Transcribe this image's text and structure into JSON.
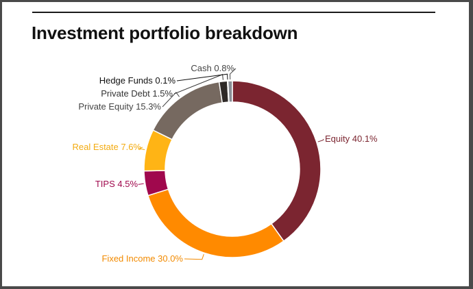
{
  "chart_data": {
    "type": "pie",
    "title": "Investment portfolio breakdown",
    "donut": true,
    "slices": [
      {
        "name": "Equity",
        "value": 40.1,
        "label": "Equity 40.1%",
        "color": "#7b2530",
        "label_color": "#7b2530"
      },
      {
        "name": "Fixed Income",
        "value": 30.0,
        "label": "Fixed Income 30.0%",
        "color": "#ff8a00",
        "label_color": "#f28a00"
      },
      {
        "name": "TIPS",
        "value": 4.5,
        "label": "TIPS 4.5%",
        "color": "#a0084d",
        "label_color": "#a0084d"
      },
      {
        "name": "Real Estate",
        "value": 7.6,
        "label": "Real Estate 7.6%",
        "color": "#ffb415",
        "label_color": "#f3ab10"
      },
      {
        "name": "Private Equity",
        "value": 15.3,
        "label": "Private Equity 15.3%",
        "color": "#766960",
        "label_color": "#444444"
      },
      {
        "name": "Private Debt",
        "value": 1.5,
        "label": "Private Debt 1.5%",
        "color": "#2f2a28",
        "label_color": "#333333"
      },
      {
        "name": "Hedge Funds",
        "value": 0.1,
        "label": "Hedge Funds 0.1%",
        "color": "#0b0b0b",
        "label_color": "#111111"
      },
      {
        "name": "Cash",
        "value": 0.8,
        "label": "Cash 0.8%",
        "color": "#8a8f96",
        "label_color": "#444444"
      }
    ]
  }
}
